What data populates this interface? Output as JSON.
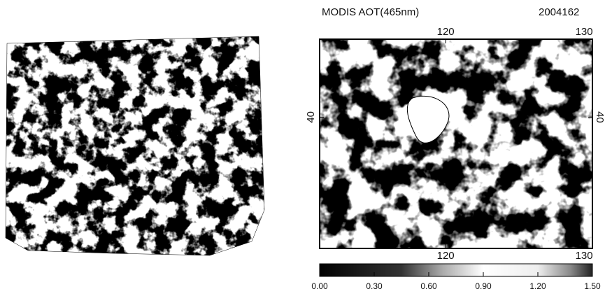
{
  "right_panel": {
    "title": "MODIS AOT(465nm)",
    "date": "2004162",
    "longitude": {
      "lim": [
        110.9,
        130.6
      ],
      "top_ticks": [
        120,
        130
      ],
      "bottom_ticks": [
        120,
        130
      ]
    },
    "latitude": {
      "lim": [
        30.4,
        45.7
      ],
      "left_ticks": [
        40
      ],
      "right_ticks": [
        40
      ]
    },
    "colorbar": {
      "lim": [
        0,
        1.5
      ],
      "ticks": [
        {
          "value": 0,
          "label": "0.00"
        },
        {
          "value": 0.3,
          "label": "0.30"
        },
        {
          "value": 0.6,
          "label": "0.60"
        },
        {
          "value": 0.9,
          "label": "0.90"
        },
        {
          "value": 1.2,
          "label": "1.20"
        },
        {
          "value": 1.5,
          "label": "1.50"
        }
      ]
    }
  }
}
